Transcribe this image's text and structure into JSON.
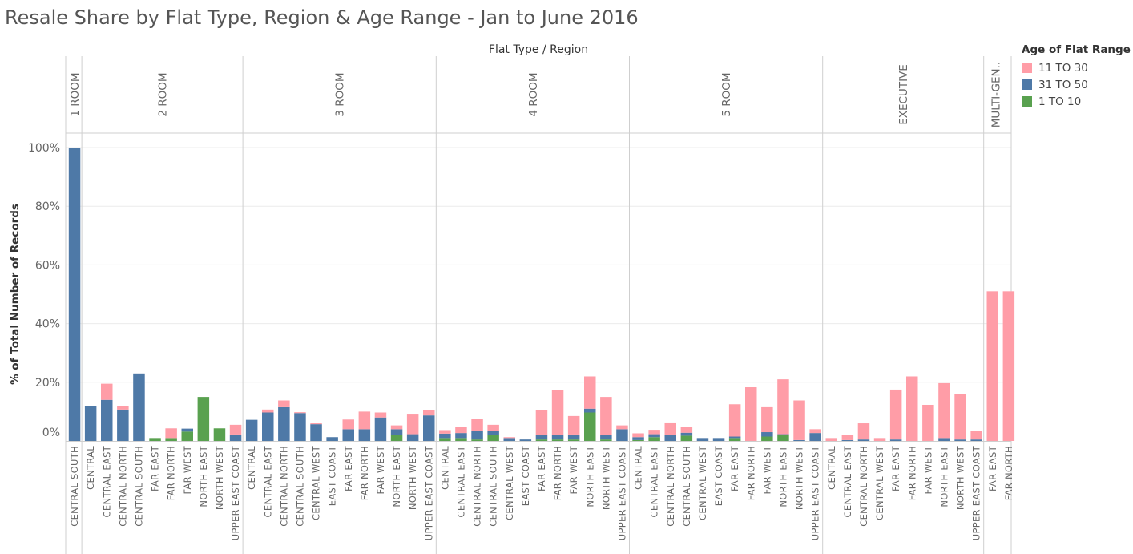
{
  "title": "Resale Share by Flat Type, Region & Age Range - Jan to June 2016",
  "legend": {
    "title": "Age of Flat Range",
    "items": [
      {
        "label": "11 TO 30",
        "color": "#ff9da7"
      },
      {
        "label": "31 TO 50",
        "color": "#4e79a7"
      },
      {
        "label": "1 TO 10",
        "color": "#59a14f"
      }
    ]
  },
  "chart_data": {
    "type": "bar",
    "stacked": true,
    "title": "Resale Share by Flat Type, Region & Age Range - Jan to June 2016",
    "column_header": "Flat Type  /  Region",
    "ylabel": "% of Total Number of Records",
    "ylim": [
      0,
      100
    ],
    "yticks": [
      "0%",
      "20%",
      "40%",
      "60%",
      "80%",
      "100%"
    ],
    "series_order": [
      "1 TO 10",
      "31 TO 50",
      "11 TO 30"
    ],
    "series_colors": {
      "11 TO 30": "#ff9da7",
      "31 TO 50": "#4e79a7",
      "1 TO 10": "#59a14f"
    },
    "panels": [
      {
        "flat_type": "1 ROOM",
        "bars": [
          {
            "region": "CENTRAL SOUTH",
            "1 TO 10": 0,
            "31 TO 50": 100,
            "11 TO 30": 0
          }
        ]
      },
      {
        "flat_type": "2 ROOM",
        "bars": [
          {
            "region": "CENTRAL",
            "1 TO 10": 0,
            "31 TO 50": 12,
            "11 TO 30": 0
          },
          {
            "region": "CENTRAL EAST",
            "1 TO 10": 0,
            "31 TO 50": 14,
            "11 TO 30": 5.5
          },
          {
            "region": "CENTRAL NORTH",
            "1 TO 10": 0,
            "31 TO 50": 10.7,
            "11 TO 30": 1.3
          },
          {
            "region": "CENTRAL SOUTH",
            "1 TO 10": 0,
            "31 TO 50": 23,
            "11 TO 30": 0
          },
          {
            "region": "FAR EAST",
            "1 TO 10": 1,
            "31 TO 50": 0,
            "11 TO 30": 0
          },
          {
            "region": "FAR NORTH",
            "1 TO 10": 1,
            "31 TO 50": 0,
            "11 TO 30": 3.3
          },
          {
            "region": "FAR WEST",
            "1 TO 10": 3.2,
            "31 TO 50": 1,
            "11 TO 30": 0
          },
          {
            "region": "NORTH EAST",
            "1 TO 10": 15,
            "31 TO 50": 0,
            "11 TO 30": 0
          },
          {
            "region": "NORTH WEST",
            "1 TO 10": 4.3,
            "31 TO 50": 0,
            "11 TO 30": 0
          },
          {
            "region": "UPPER EAST COAST",
            "1 TO 10": 0,
            "31 TO 50": 2.2,
            "11 TO 30": 3.3
          }
        ]
      },
      {
        "flat_type": "3 ROOM",
        "bars": [
          {
            "region": "CENTRAL",
            "1 TO 10": 0,
            "31 TO 50": 7.2,
            "11 TO 30": 0
          },
          {
            "region": "CENTRAL EAST",
            "1 TO 10": 0,
            "31 TO 50": 9.7,
            "11 TO 30": 1
          },
          {
            "region": "CENTRAL NORTH",
            "1 TO 10": 0,
            "31 TO 50": 11.5,
            "11 TO 30": 2.3
          },
          {
            "region": "CENTRAL SOUTH",
            "1 TO 10": 0,
            "31 TO 50": 9.5,
            "11 TO 30": 0.3
          },
          {
            "region": "CENTRAL WEST",
            "1 TO 10": 0,
            "31 TO 50": 5.7,
            "11 TO 30": 0.3
          },
          {
            "region": "EAST COAST",
            "1 TO 10": 0,
            "31 TO 50": 1.3,
            "11 TO 30": 0
          },
          {
            "region": "FAR EAST",
            "1 TO 10": 0,
            "31 TO 50": 4,
            "11 TO 30": 3.3
          },
          {
            "region": "FAR NORTH",
            "1 TO 10": 0,
            "31 TO 50": 4,
            "11 TO 30": 6
          },
          {
            "region": "FAR WEST",
            "1 TO 10": 0,
            "31 TO 50": 8,
            "11 TO 30": 1.7
          },
          {
            "region": "NORTH EAST",
            "1 TO 10": 2,
            "31 TO 50": 2,
            "11 TO 30": 1.3
          },
          {
            "region": "NORTH WEST",
            "1 TO 10": 0,
            "31 TO 50": 2.3,
            "11 TO 30": 6.7
          },
          {
            "region": "UPPER EAST COAST",
            "1 TO 10": 0,
            "31 TO 50": 8.7,
            "11 TO 30": 1.7
          }
        ]
      },
      {
        "flat_type": "4 ROOM",
        "bars": [
          {
            "region": "CENTRAL",
            "1 TO 10": 1,
            "31 TO 50": 1.5,
            "11 TO 30": 1.2
          },
          {
            "region": "CENTRAL EAST",
            "1 TO 10": 1,
            "31 TO 50": 1.7,
            "11 TO 30": 2
          },
          {
            "region": "CENTRAL NORTH",
            "1 TO 10": 0.5,
            "31 TO 50": 2.8,
            "11 TO 30": 4.3
          },
          {
            "region": "CENTRAL SOUTH",
            "1 TO 10": 2,
            "31 TO 50": 1.5,
            "11 TO 30": 2
          },
          {
            "region": "CENTRAL WEST",
            "1 TO 10": 0,
            "31 TO 50": 1,
            "11 TO 30": 0.3
          },
          {
            "region": "EAST COAST",
            "1 TO 10": 0,
            "31 TO 50": 0.5,
            "11 TO 30": 0
          },
          {
            "region": "FAR EAST",
            "1 TO 10": 0.5,
            "31 TO 50": 1.5,
            "11 TO 30": 8.5
          },
          {
            "region": "FAR NORTH",
            "1 TO 10": 0.5,
            "31 TO 50": 1.5,
            "11 TO 30": 15.3
          },
          {
            "region": "FAR WEST",
            "1 TO 10": 0.5,
            "31 TO 50": 1.7,
            "11 TO 30": 6.3
          },
          {
            "region": "NORTH EAST",
            "1 TO 10": 9.7,
            "31 TO 50": 1.3,
            "11 TO 30": 11
          },
          {
            "region": "NORTH WEST",
            "1 TO 10": 0.5,
            "31 TO 50": 1.5,
            "11 TO 30": 13
          },
          {
            "region": "UPPER EAST COAST",
            "1 TO 10": 0,
            "31 TO 50": 4,
            "11 TO 30": 1.3
          }
        ]
      },
      {
        "flat_type": "5 ROOM",
        "bars": [
          {
            "region": "CENTRAL",
            "1 TO 10": 0.3,
            "31 TO 50": 1,
            "11 TO 30": 1.3
          },
          {
            "region": "CENTRAL EAST",
            "1 TO 10": 1.3,
            "31 TO 50": 1,
            "11 TO 30": 1.5
          },
          {
            "region": "CENTRAL NORTH",
            "1 TO 10": 0,
            "31 TO 50": 2,
            "11 TO 30": 4.3
          },
          {
            "region": "CENTRAL SOUTH",
            "1 TO 10": 1.8,
            "31 TO 50": 1,
            "11 TO 30": 2
          },
          {
            "region": "CENTRAL WEST",
            "1 TO 10": 0,
            "31 TO 50": 1,
            "11 TO 30": 0
          },
          {
            "region": "EAST COAST",
            "1 TO 10": 0,
            "31 TO 50": 1,
            "11 TO 30": 0
          },
          {
            "region": "FAR EAST",
            "1 TO 10": 1,
            "31 TO 50": 0.5,
            "11 TO 30": 11
          },
          {
            "region": "FAR NORTH",
            "1 TO 10": 0,
            "31 TO 50": 0,
            "11 TO 30": 18.3
          },
          {
            "region": "FAR WEST",
            "1 TO 10": 1.5,
            "31 TO 50": 1.5,
            "11 TO 30": 8.5
          },
          {
            "region": "NORTH EAST",
            "1 TO 10": 2,
            "31 TO 50": 0.3,
            "11 TO 30": 18.7
          },
          {
            "region": "NORTH WEST",
            "1 TO 10": 0,
            "31 TO 50": 0.3,
            "11 TO 30": 13.5
          },
          {
            "region": "UPPER EAST COAST",
            "1 TO 10": 0,
            "31 TO 50": 2.7,
            "11 TO 30": 1.3
          }
        ]
      },
      {
        "flat_type": "EXECUTIVE",
        "bars": [
          {
            "region": "CENTRAL",
            "1 TO 10": 0,
            "31 TO 50": 0,
            "11 TO 30": 1
          },
          {
            "region": "CENTRAL EAST",
            "1 TO 10": 0,
            "31 TO 50": 0.3,
            "11 TO 30": 1.7
          },
          {
            "region": "CENTRAL NORTH",
            "1 TO 10": 0,
            "31 TO 50": 0.5,
            "11 TO 30": 5.5
          },
          {
            "region": "CENTRAL WEST",
            "1 TO 10": 0,
            "31 TO 50": 0,
            "11 TO 30": 1
          },
          {
            "region": "FAR EAST",
            "1 TO 10": 0,
            "31 TO 50": 0.5,
            "11 TO 30": 17
          },
          {
            "region": "FAR NORTH",
            "1 TO 10": 0,
            "31 TO 50": 0,
            "11 TO 30": 22
          },
          {
            "region": "FAR WEST",
            "1 TO 10": 0,
            "31 TO 50": 0,
            "11 TO 30": 12.3
          },
          {
            "region": "NORTH EAST",
            "1 TO 10": 0,
            "31 TO 50": 1,
            "11 TO 30": 18.7
          },
          {
            "region": "NORTH WEST",
            "1 TO 10": 0,
            "31 TO 50": 0.5,
            "11 TO 30": 15.5
          },
          {
            "region": "UPPER EAST COAST",
            "1 TO 10": 0,
            "31 TO 50": 0.5,
            "11 TO 30": 2.8
          }
        ]
      },
      {
        "flat_type": "MULTI-GEN..",
        "bars": [
          {
            "region": "FAR EAST",
            "1 TO 10": 0,
            "31 TO 50": 0,
            "11 TO 30": 51
          },
          {
            "region": "FAR NORTH",
            "1 TO 10": 0,
            "31 TO 50": 0,
            "11 TO 30": 51
          }
        ]
      }
    ]
  }
}
